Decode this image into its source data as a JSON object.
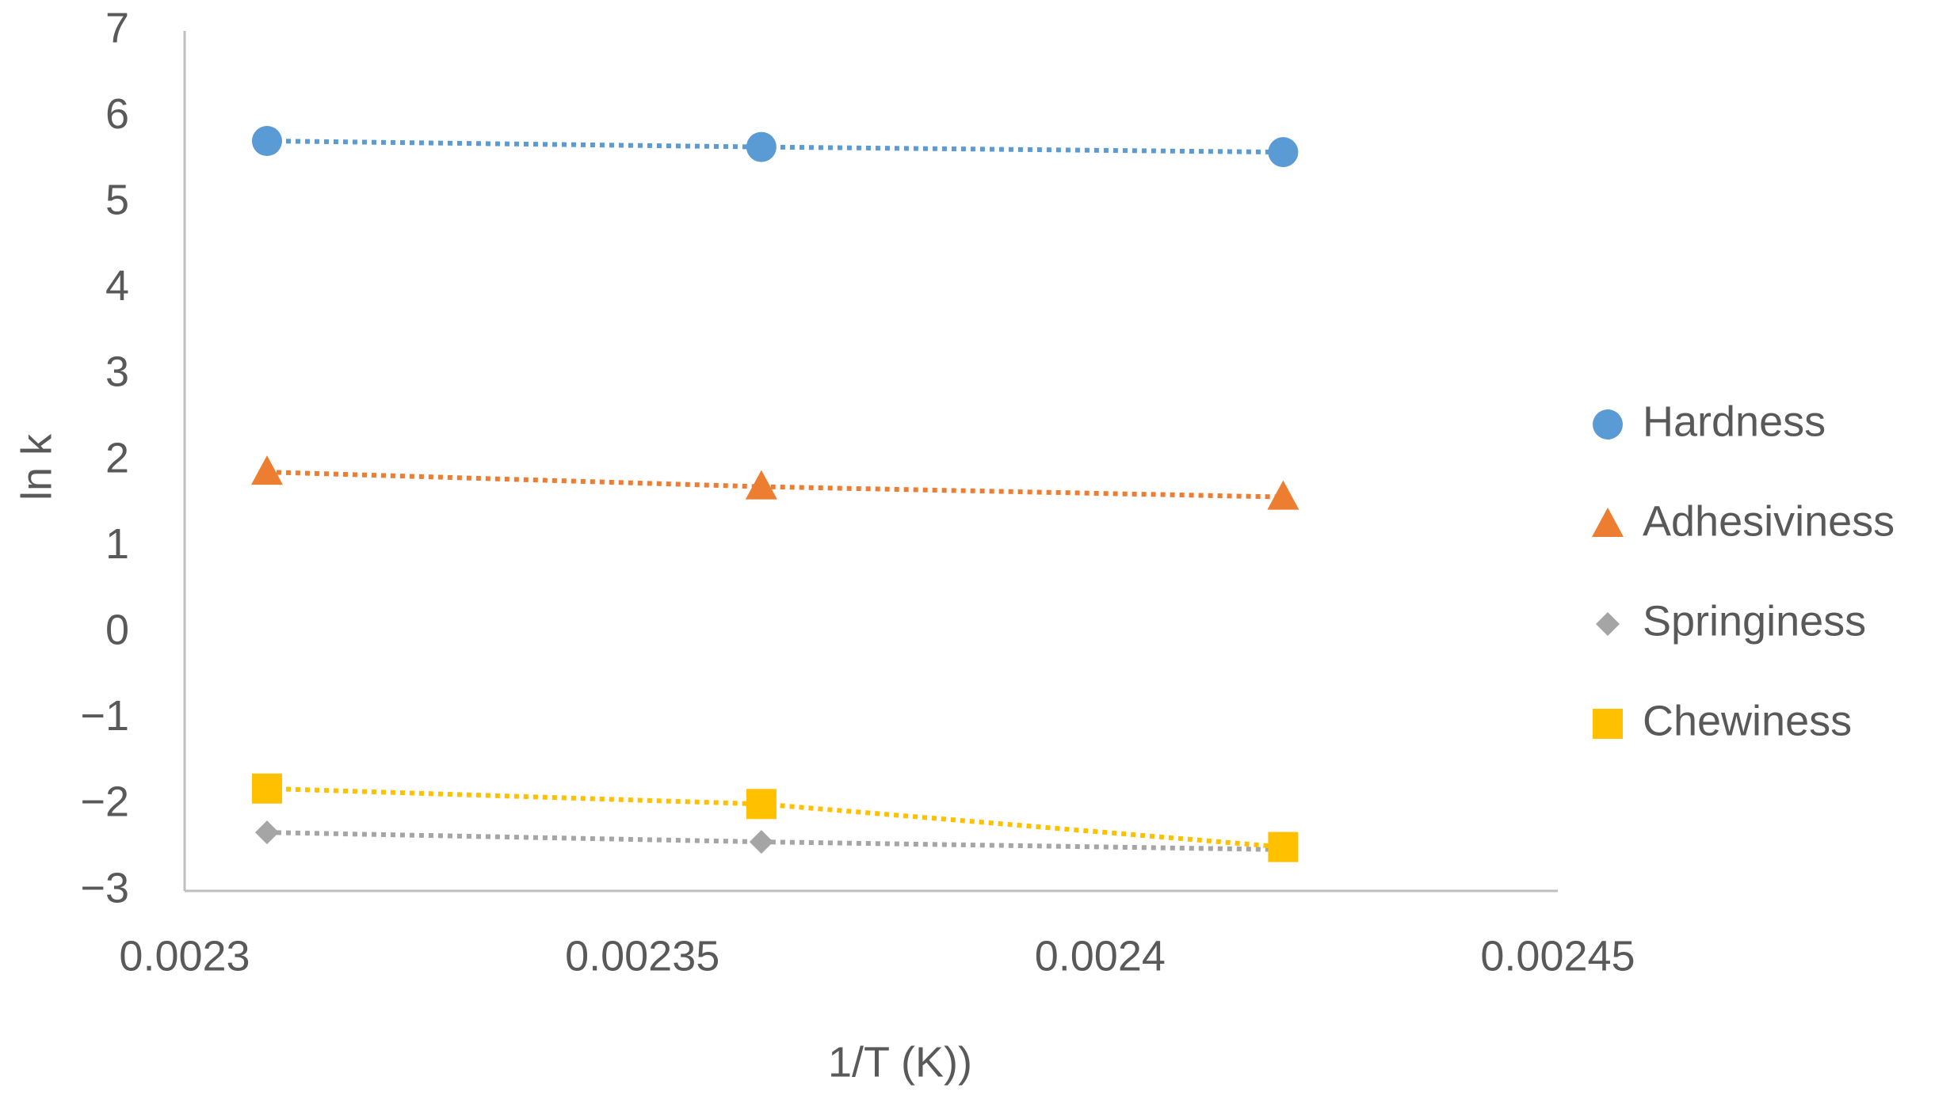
{
  "chart_data": {
    "type": "scatter",
    "x_label": "1/T (K))",
    "y_label": "ln k",
    "x": [
      0.002309,
      0.002363,
      0.00242
    ],
    "series": [
      {
        "name": "Hardness",
        "color": "#5b9bd5",
        "marker": "circle",
        "values": [
          5.72,
          5.65,
          5.59
        ]
      },
      {
        "name": "Adhesiviness",
        "color": "#ed7d31",
        "marker": "triangle",
        "values": [
          1.87,
          1.7,
          1.58
        ]
      },
      {
        "name": "Springiness",
        "color": "#a5a5a5",
        "marker": "diamond",
        "values": [
          -2.32,
          -2.43,
          -2.52
        ]
      },
      {
        "name": "Chewiness",
        "color": "#ffc000",
        "marker": "square",
        "values": [
          -1.81,
          -1.99,
          -2.49
        ]
      }
    ],
    "xlim": [
      0.0023,
      0.00245
    ],
    "xticks": [
      0.0023,
      0.00235,
      0.0024,
      0.00245
    ],
    "ylim": [
      -3,
      7
    ],
    "yticks": [
      {
        "value": -3,
        "label": "−3"
      },
      {
        "value": -2,
        "label": "−2"
      },
      {
        "value": -1,
        "label": "−1"
      },
      0,
      1,
      2,
      3,
      4,
      5,
      6,
      7
    ],
    "line_style": "dotted",
    "grid": false,
    "legend": "right"
  }
}
